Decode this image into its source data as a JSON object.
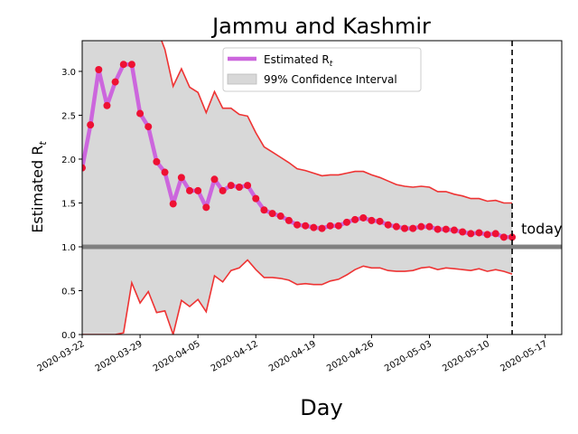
{
  "chart_data": {
    "type": "line",
    "title": "Jammu and Kashmir",
    "xlabel": "Day",
    "ylabel": "Estimated R",
    "ylabel_sub": "t",
    "xlim": [
      "2020-03-22",
      "2020-05-19"
    ],
    "ylim": [
      0,
      3.35
    ],
    "yticks": [
      "0.0",
      "0.5",
      "1.0",
      "1.5",
      "2.0",
      "2.5",
      "3.0"
    ],
    "ytick_values": [
      0,
      0.5,
      1.0,
      1.5,
      2.0,
      2.5,
      3.0
    ],
    "xticks": [
      "2020-03-22",
      "2020-03-29",
      "2020-04-05",
      "2020-04-12",
      "2020-04-19",
      "2020-04-26",
      "2020-05-03",
      "2020-05-10",
      "2020-05-17"
    ],
    "legend": {
      "placement": "top-center",
      "entries": [
        {
          "label": "Estimated R",
          "label_sub": "t",
          "color": "#cc66dd",
          "kind": "line"
        },
        {
          "label": "99% Confidence Interval",
          "color": "#d8d8d8",
          "kind": "patch"
        }
      ]
    },
    "reference_line": {
      "y": 1.0,
      "color": "#808080"
    },
    "today_line": {
      "x": "2020-05-13",
      "label": "today"
    },
    "colors": {
      "estimate_line": "#cc66dd",
      "points": "#ee1133",
      "bounds": "#ee3333",
      "band": "#d8d8d8"
    },
    "series": [
      {
        "name": "Estimated R_t",
        "x": [
          "2020-03-22",
          "2020-03-23",
          "2020-03-24",
          "2020-03-25",
          "2020-03-26",
          "2020-03-27",
          "2020-03-28",
          "2020-03-29",
          "2020-03-30",
          "2020-03-31",
          "2020-04-01",
          "2020-04-02",
          "2020-04-03",
          "2020-04-04",
          "2020-04-05",
          "2020-04-06",
          "2020-04-07",
          "2020-04-08",
          "2020-04-09",
          "2020-04-10",
          "2020-04-11",
          "2020-04-12",
          "2020-04-13",
          "2020-04-14",
          "2020-04-15",
          "2020-04-16",
          "2020-04-17",
          "2020-04-18",
          "2020-04-19",
          "2020-04-20",
          "2020-04-21",
          "2020-04-22",
          "2020-04-23",
          "2020-04-24",
          "2020-04-25",
          "2020-04-26",
          "2020-04-27",
          "2020-04-28",
          "2020-04-29",
          "2020-04-30",
          "2020-05-01",
          "2020-05-02",
          "2020-05-03",
          "2020-05-04",
          "2020-05-05",
          "2020-05-06",
          "2020-05-07",
          "2020-05-08",
          "2020-05-09",
          "2020-05-10",
          "2020-05-11",
          "2020-05-12",
          "2020-05-13"
        ],
        "values": [
          1.9,
          2.39,
          3.02,
          2.61,
          2.88,
          3.08,
          3.08,
          2.52,
          2.37,
          1.97,
          1.85,
          1.49,
          1.79,
          1.64,
          1.64,
          1.45,
          1.77,
          1.64,
          1.7,
          1.68,
          1.7,
          1.55,
          1.42,
          1.38,
          1.35,
          1.3,
          1.25,
          1.24,
          1.22,
          1.21,
          1.24,
          1.24,
          1.28,
          1.31,
          1.33,
          1.3,
          1.29,
          1.25,
          1.23,
          1.21,
          1.21,
          1.23,
          1.23,
          1.2,
          1.2,
          1.19,
          1.17,
          1.15,
          1.16,
          1.14,
          1.15,
          1.11,
          1.11
        ]
      },
      {
        "name": "upper",
        "x": [
          "2020-03-22",
          "2020-03-23",
          "2020-03-24",
          "2020-03-25",
          "2020-03-26",
          "2020-03-27",
          "2020-03-28",
          "2020-03-29",
          "2020-03-30",
          "2020-03-31",
          "2020-04-01",
          "2020-04-02",
          "2020-04-03",
          "2020-04-04",
          "2020-04-05",
          "2020-04-06",
          "2020-04-07",
          "2020-04-08",
          "2020-04-09",
          "2020-04-10",
          "2020-04-11",
          "2020-04-12",
          "2020-04-13",
          "2020-04-14",
          "2020-04-15",
          "2020-04-16",
          "2020-04-17",
          "2020-04-18",
          "2020-04-19",
          "2020-04-20",
          "2020-04-21",
          "2020-04-22",
          "2020-04-23",
          "2020-04-24",
          "2020-04-25",
          "2020-04-26",
          "2020-04-27",
          "2020-04-28",
          "2020-04-29",
          "2020-04-30",
          "2020-05-01",
          "2020-05-02",
          "2020-05-03",
          "2020-05-04",
          "2020-05-05",
          "2020-05-06",
          "2020-05-07",
          "2020-05-08",
          "2020-05-09",
          "2020-05-10",
          "2020-05-11",
          "2020-05-12",
          "2020-05-13"
        ],
        "values": [
          3.5,
          3.5,
          3.5,
          3.5,
          3.5,
          3.5,
          3.5,
          3.5,
          3.5,
          3.5,
          3.25,
          2.83,
          3.03,
          2.82,
          2.76,
          2.53,
          2.77,
          2.58,
          2.58,
          2.51,
          2.49,
          2.3,
          2.14,
          2.08,
          2.02,
          1.96,
          1.89,
          1.87,
          1.84,
          1.81,
          1.82,
          1.82,
          1.84,
          1.86,
          1.86,
          1.82,
          1.79,
          1.75,
          1.71,
          1.69,
          1.68,
          1.69,
          1.68,
          1.63,
          1.63,
          1.6,
          1.58,
          1.55,
          1.55,
          1.52,
          1.53,
          1.5,
          1.5
        ]
      },
      {
        "name": "lower",
        "x": [
          "2020-03-22",
          "2020-03-23",
          "2020-03-24",
          "2020-03-25",
          "2020-03-26",
          "2020-03-27",
          "2020-03-28",
          "2020-03-29",
          "2020-03-30",
          "2020-03-31",
          "2020-04-01",
          "2020-04-02",
          "2020-04-03",
          "2020-04-04",
          "2020-04-05",
          "2020-04-06",
          "2020-04-07",
          "2020-04-08",
          "2020-04-09",
          "2020-04-10",
          "2020-04-11",
          "2020-04-12",
          "2020-04-13",
          "2020-04-14",
          "2020-04-15",
          "2020-04-16",
          "2020-04-17",
          "2020-04-18",
          "2020-04-19",
          "2020-04-20",
          "2020-04-21",
          "2020-04-22",
          "2020-04-23",
          "2020-04-24",
          "2020-04-25",
          "2020-04-26",
          "2020-04-27",
          "2020-04-28",
          "2020-04-29",
          "2020-04-30",
          "2020-05-01",
          "2020-05-02",
          "2020-05-03",
          "2020-05-04",
          "2020-05-05",
          "2020-05-06",
          "2020-05-07",
          "2020-05-08",
          "2020-05-09",
          "2020-05-10",
          "2020-05-11",
          "2020-05-12",
          "2020-05-13"
        ],
        "values": [
          0.0,
          0.0,
          0.0,
          0.0,
          0.0,
          0.02,
          0.59,
          0.36,
          0.49,
          0.25,
          0.27,
          0.0,
          0.39,
          0.32,
          0.4,
          0.26,
          0.67,
          0.6,
          0.73,
          0.76,
          0.85,
          0.74,
          0.65,
          0.65,
          0.64,
          0.62,
          0.57,
          0.58,
          0.57,
          0.57,
          0.61,
          0.63,
          0.68,
          0.74,
          0.78,
          0.76,
          0.76,
          0.73,
          0.72,
          0.72,
          0.73,
          0.76,
          0.77,
          0.74,
          0.76,
          0.75,
          0.74,
          0.73,
          0.75,
          0.72,
          0.74,
          0.72,
          0.69
        ]
      }
    ]
  }
}
